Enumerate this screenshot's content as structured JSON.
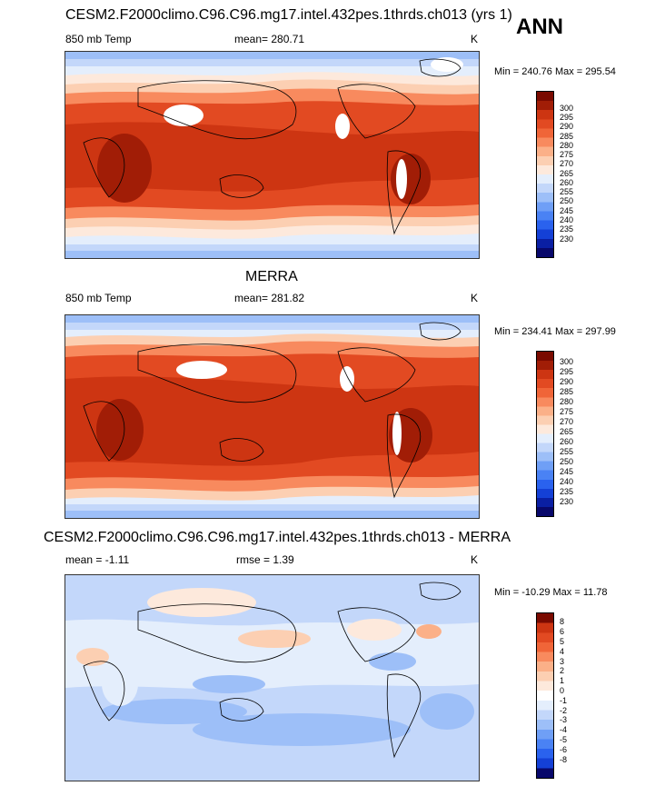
{
  "season": "ANN",
  "colors": {
    "temp": [
      "#08086b",
      "#0a1fa3",
      "#1440d6",
      "#2a62ee",
      "#4a82f4",
      "#6f9ff6",
      "#9dbff8",
      "#c3d7fa",
      "#e4eefc",
      "#fde9dc",
      "#fccfb2",
      "#fbb088",
      "#f88a5e",
      "#f06538",
      "#e24a22",
      "#cd3512",
      "#a11d06",
      "#7a0a00"
    ],
    "diff": [
      "#08086b",
      "#0a1fa3",
      "#1440d6",
      "#2a62ee",
      "#4a82f4",
      "#6f9ff6",
      "#9dbff8",
      "#c3d7fa",
      "#e4eefc",
      "#fde9dc",
      "#fccfb2",
      "#fbb088",
      "#f88a5e",
      "#f06538",
      "#e24a22",
      "#cd3512",
      "#7a0a00"
    ]
  },
  "panels": [
    {
      "title": "CESM2.F2000climo.C96.C96.mg17.intel.432pes.1thrds.ch013 (yrs 1)",
      "left_label": "850 mb Temp",
      "mean": "mean= 280.71",
      "extra": "",
      "units": "K",
      "minmax": "Min = 240.76 Max = 295.54",
      "colorbar_labels": [
        "300",
        "295",
        "290",
        "285",
        "280",
        "275",
        "270",
        "265",
        "260",
        "255",
        "250",
        "245",
        "240",
        "235",
        "230"
      ]
    },
    {
      "title": "MERRA",
      "left_label": "850 mb Temp",
      "mean": "mean= 281.82",
      "extra": "",
      "units": "K",
      "minmax": "Min = 234.41 Max = 297.99",
      "colorbar_labels": [
        "300",
        "295",
        "290",
        "285",
        "280",
        "275",
        "270",
        "265",
        "260",
        "255",
        "250",
        "245",
        "240",
        "235",
        "230"
      ]
    },
    {
      "title": "CESM2.F2000climo.C96.C96.mg17.intel.432pes.1thrds.ch013 - MERRA",
      "left_label": "mean =  -1.11",
      "mean": "rmse =   1.39",
      "extra": "",
      "units": "K",
      "minmax": "Min = -10.29 Max =  11.78",
      "colorbar_labels": [
        "8",
        "6",
        "5",
        "4",
        "3",
        "2",
        "1",
        "0",
        "-1",
        "-2",
        "-3",
        "-4",
        "-5",
        "-6",
        "-8"
      ]
    }
  ]
}
